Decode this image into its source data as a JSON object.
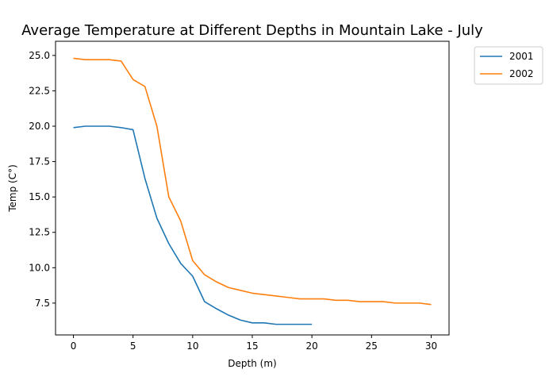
{
  "chart_data": {
    "type": "line",
    "title": "Average Temperature at Different Depths in Mountain Lake - July",
    "xlabel": "Depth (m)",
    "ylabel": "Temp (C°)",
    "xlim": [
      -1.5,
      31.5
    ],
    "ylim": [
      5.25,
      26.0
    ],
    "xticks": [
      0,
      5,
      10,
      15,
      20,
      25,
      30
    ],
    "xtick_labels": [
      "0",
      "5",
      "10",
      "15",
      "20",
      "25",
      "30"
    ],
    "yticks": [
      7.5,
      10.0,
      12.5,
      15.0,
      17.5,
      20.0,
      22.5,
      25.0
    ],
    "ytick_labels": [
      "7.5",
      "10.0",
      "12.5",
      "15.0",
      "17.5",
      "20.0",
      "22.5",
      "25.0"
    ],
    "grid": false,
    "legend_position": "outside-top-right",
    "series": [
      {
        "name": "2001",
        "color": "#1f77b4",
        "x": [
          0,
          1,
          2,
          3,
          4,
          5,
          6,
          7,
          8,
          9,
          10,
          11,
          12,
          13,
          14,
          15,
          16,
          17,
          18,
          19,
          20
        ],
        "y": [
          19.9,
          20.0,
          20.0,
          20.0,
          19.9,
          19.75,
          16.3,
          13.5,
          11.7,
          10.3,
          9.4,
          7.6,
          7.1,
          6.65,
          6.3,
          6.1,
          6.1,
          6.0,
          6.0,
          6.0,
          6.0
        ]
      },
      {
        "name": "2002",
        "color": "#ff7f0e",
        "x": [
          0,
          1,
          2,
          3,
          4,
          5,
          6,
          7,
          8,
          9,
          10,
          11,
          12,
          13,
          14,
          15,
          16,
          17,
          18,
          19,
          20,
          21,
          22,
          23,
          24,
          25,
          26,
          27,
          28,
          29,
          30
        ],
        "y": [
          24.8,
          24.7,
          24.7,
          24.7,
          24.6,
          23.3,
          22.8,
          20.0,
          15.0,
          13.3,
          10.5,
          9.5,
          9.0,
          8.6,
          8.4,
          8.2,
          8.1,
          8.0,
          7.9,
          7.8,
          7.8,
          7.8,
          7.7,
          7.7,
          7.6,
          7.6,
          7.6,
          7.5,
          7.5,
          7.5,
          7.4
        ]
      }
    ]
  }
}
